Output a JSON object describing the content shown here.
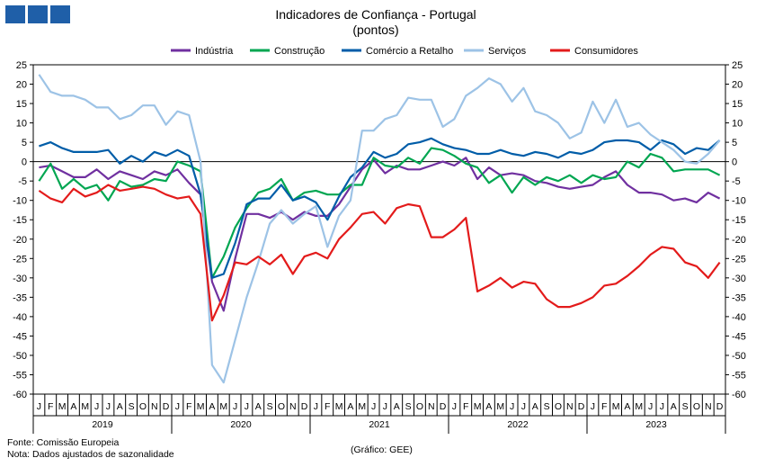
{
  "header": {
    "logo_icon": "gee-logo-icon"
  },
  "chart_data": {
    "type": "line",
    "title": "Indicadores de Confiança - Portugal",
    "subtitle": "(pontos)",
    "ylim": [
      -60,
      25
    ],
    "yticks": [
      25,
      20,
      15,
      10,
      5,
      0,
      -5,
      -10,
      -15,
      -20,
      -25,
      -30,
      -35,
      -40,
      -45,
      -50,
      -55,
      -60
    ],
    "legend_position": "top",
    "month_labels": [
      "J",
      "F",
      "M",
      "A",
      "M",
      "J",
      "J",
      "A",
      "S",
      "O",
      "N",
      "D"
    ],
    "years": [
      "2019",
      "2020",
      "2021",
      "2022",
      "2023"
    ],
    "series": [
      {
        "name": "Indústria",
        "color": "#7030A0",
        "values": [
          -1.5,
          -1,
          -2.5,
          -4,
          -4,
          -2,
          -4.5,
          -2.5,
          -3.5,
          -4.5,
          -2.5,
          -3.5,
          -2,
          -5.5,
          -8.5,
          -31,
          -38.5,
          -25,
          -13.5,
          -13.5,
          -14.5,
          -13,
          -15,
          -13,
          -14,
          -14,
          -11,
          -6.5,
          -2,
          0.5,
          -3,
          -1,
          -2,
          -2,
          -1,
          0,
          -1,
          1,
          -4.5,
          -1.5,
          -3.5,
          -3,
          -3.5,
          -5,
          -5.5,
          -6.5,
          -7,
          -6.5,
          -6,
          -4,
          -2.5,
          -6,
          -8,
          -8,
          -8.5,
          -10,
          -9.5,
          -10.5,
          -8,
          -9.5
        ]
      },
      {
        "name": "Construção",
        "color": "#00A651",
        "values": [
          -5,
          -0.5,
          -7,
          -4.5,
          -7,
          -6,
          -10,
          -5,
          -6.5,
          -6,
          -4.5,
          -5,
          0,
          -1,
          -2.5,
          -30,
          -24.5,
          -17,
          -12,
          -8,
          -7,
          -4.5,
          -10,
          -8,
          -7.5,
          -8.5,
          -8.5,
          -6,
          -6,
          1,
          -1,
          -1.5,
          1,
          -0.5,
          3.5,
          3,
          1.5,
          -0.5,
          -1.5,
          -5.5,
          -3.5,
          -8,
          -4,
          -6,
          -4,
          -5,
          -3.5,
          -5.5,
          -3.5,
          -4.5,
          -4,
          0,
          -1.5,
          2,
          1,
          -2.5,
          -2,
          -2,
          -2,
          -3.5
        ]
      },
      {
        "name": "Comércio a Retalho",
        "color": "#005DA8",
        "values": [
          4,
          5,
          3.5,
          2.5,
          2.5,
          2.5,
          3,
          -0.5,
          1.5,
          0,
          2.5,
          1.5,
          3,
          1.5,
          -8.5,
          -30,
          -29,
          -21,
          -11,
          -9.5,
          -9.5,
          -6,
          -10,
          -9,
          -10.5,
          -15,
          -9,
          -4,
          -1.5,
          2.5,
          1,
          2,
          4.5,
          5,
          6,
          4.5,
          3.5,
          3,
          2,
          2,
          3,
          2,
          1.5,
          2.5,
          2,
          1,
          2.5,
          2,
          3,
          5,
          5.5,
          5.5,
          5,
          3,
          5.5,
          4.5,
          2,
          3.5,
          3,
          5.5
        ]
      },
      {
        "name": "Serviços",
        "color": "#9DC3E6",
        "values": [
          22.5,
          18,
          17,
          17,
          16,
          14,
          14,
          11,
          12,
          14.5,
          14.5,
          9.5,
          13,
          12,
          0,
          -52.5,
          -57,
          -46,
          -35,
          -26,
          -16,
          -12.5,
          -16,
          -13.5,
          -11.5,
          -22,
          -14,
          -10,
          8,
          8,
          11,
          12,
          16.5,
          16,
          16,
          9,
          11,
          17,
          19,
          21.5,
          20,
          15.5,
          19,
          13,
          12,
          10,
          6,
          7.5,
          15.5,
          10,
          16,
          9,
          10,
          7,
          5,
          3,
          0,
          -0.5,
          2,
          5.5
        ]
      },
      {
        "name": "Consumidores",
        "color": "#E31B1B",
        "values": [
          -7.5,
          -9.5,
          -10.5,
          -7,
          -9,
          -8,
          -6,
          -7.5,
          -7,
          -6.5,
          -7,
          -8.5,
          -9.5,
          -9,
          -13.5,
          -41,
          -34.5,
          -26,
          -26.5,
          -24.5,
          -26.5,
          -24,
          -29,
          -24.5,
          -23.5,
          -25,
          -20,
          -17,
          -13.5,
          -13,
          -16,
          -12,
          -11,
          -11.5,
          -19.5,
          -19.5,
          -17.5,
          -14.5,
          -33.5,
          -32,
          -30,
          -32.5,
          -31,
          -31.5,
          -35.5,
          -37.5,
          -37.5,
          -36.5,
          -35,
          -32,
          -31.5,
          -29.5,
          -27,
          -24,
          -22,
          -22.5,
          -26,
          -27,
          -30,
          -26
        ]
      }
    ]
  },
  "footer": {
    "source": "Fonte: Comissão Europeia",
    "note": "Nota: Dados ajustados de sazonalidade",
    "credit": "(Gráfico: GEE)"
  }
}
